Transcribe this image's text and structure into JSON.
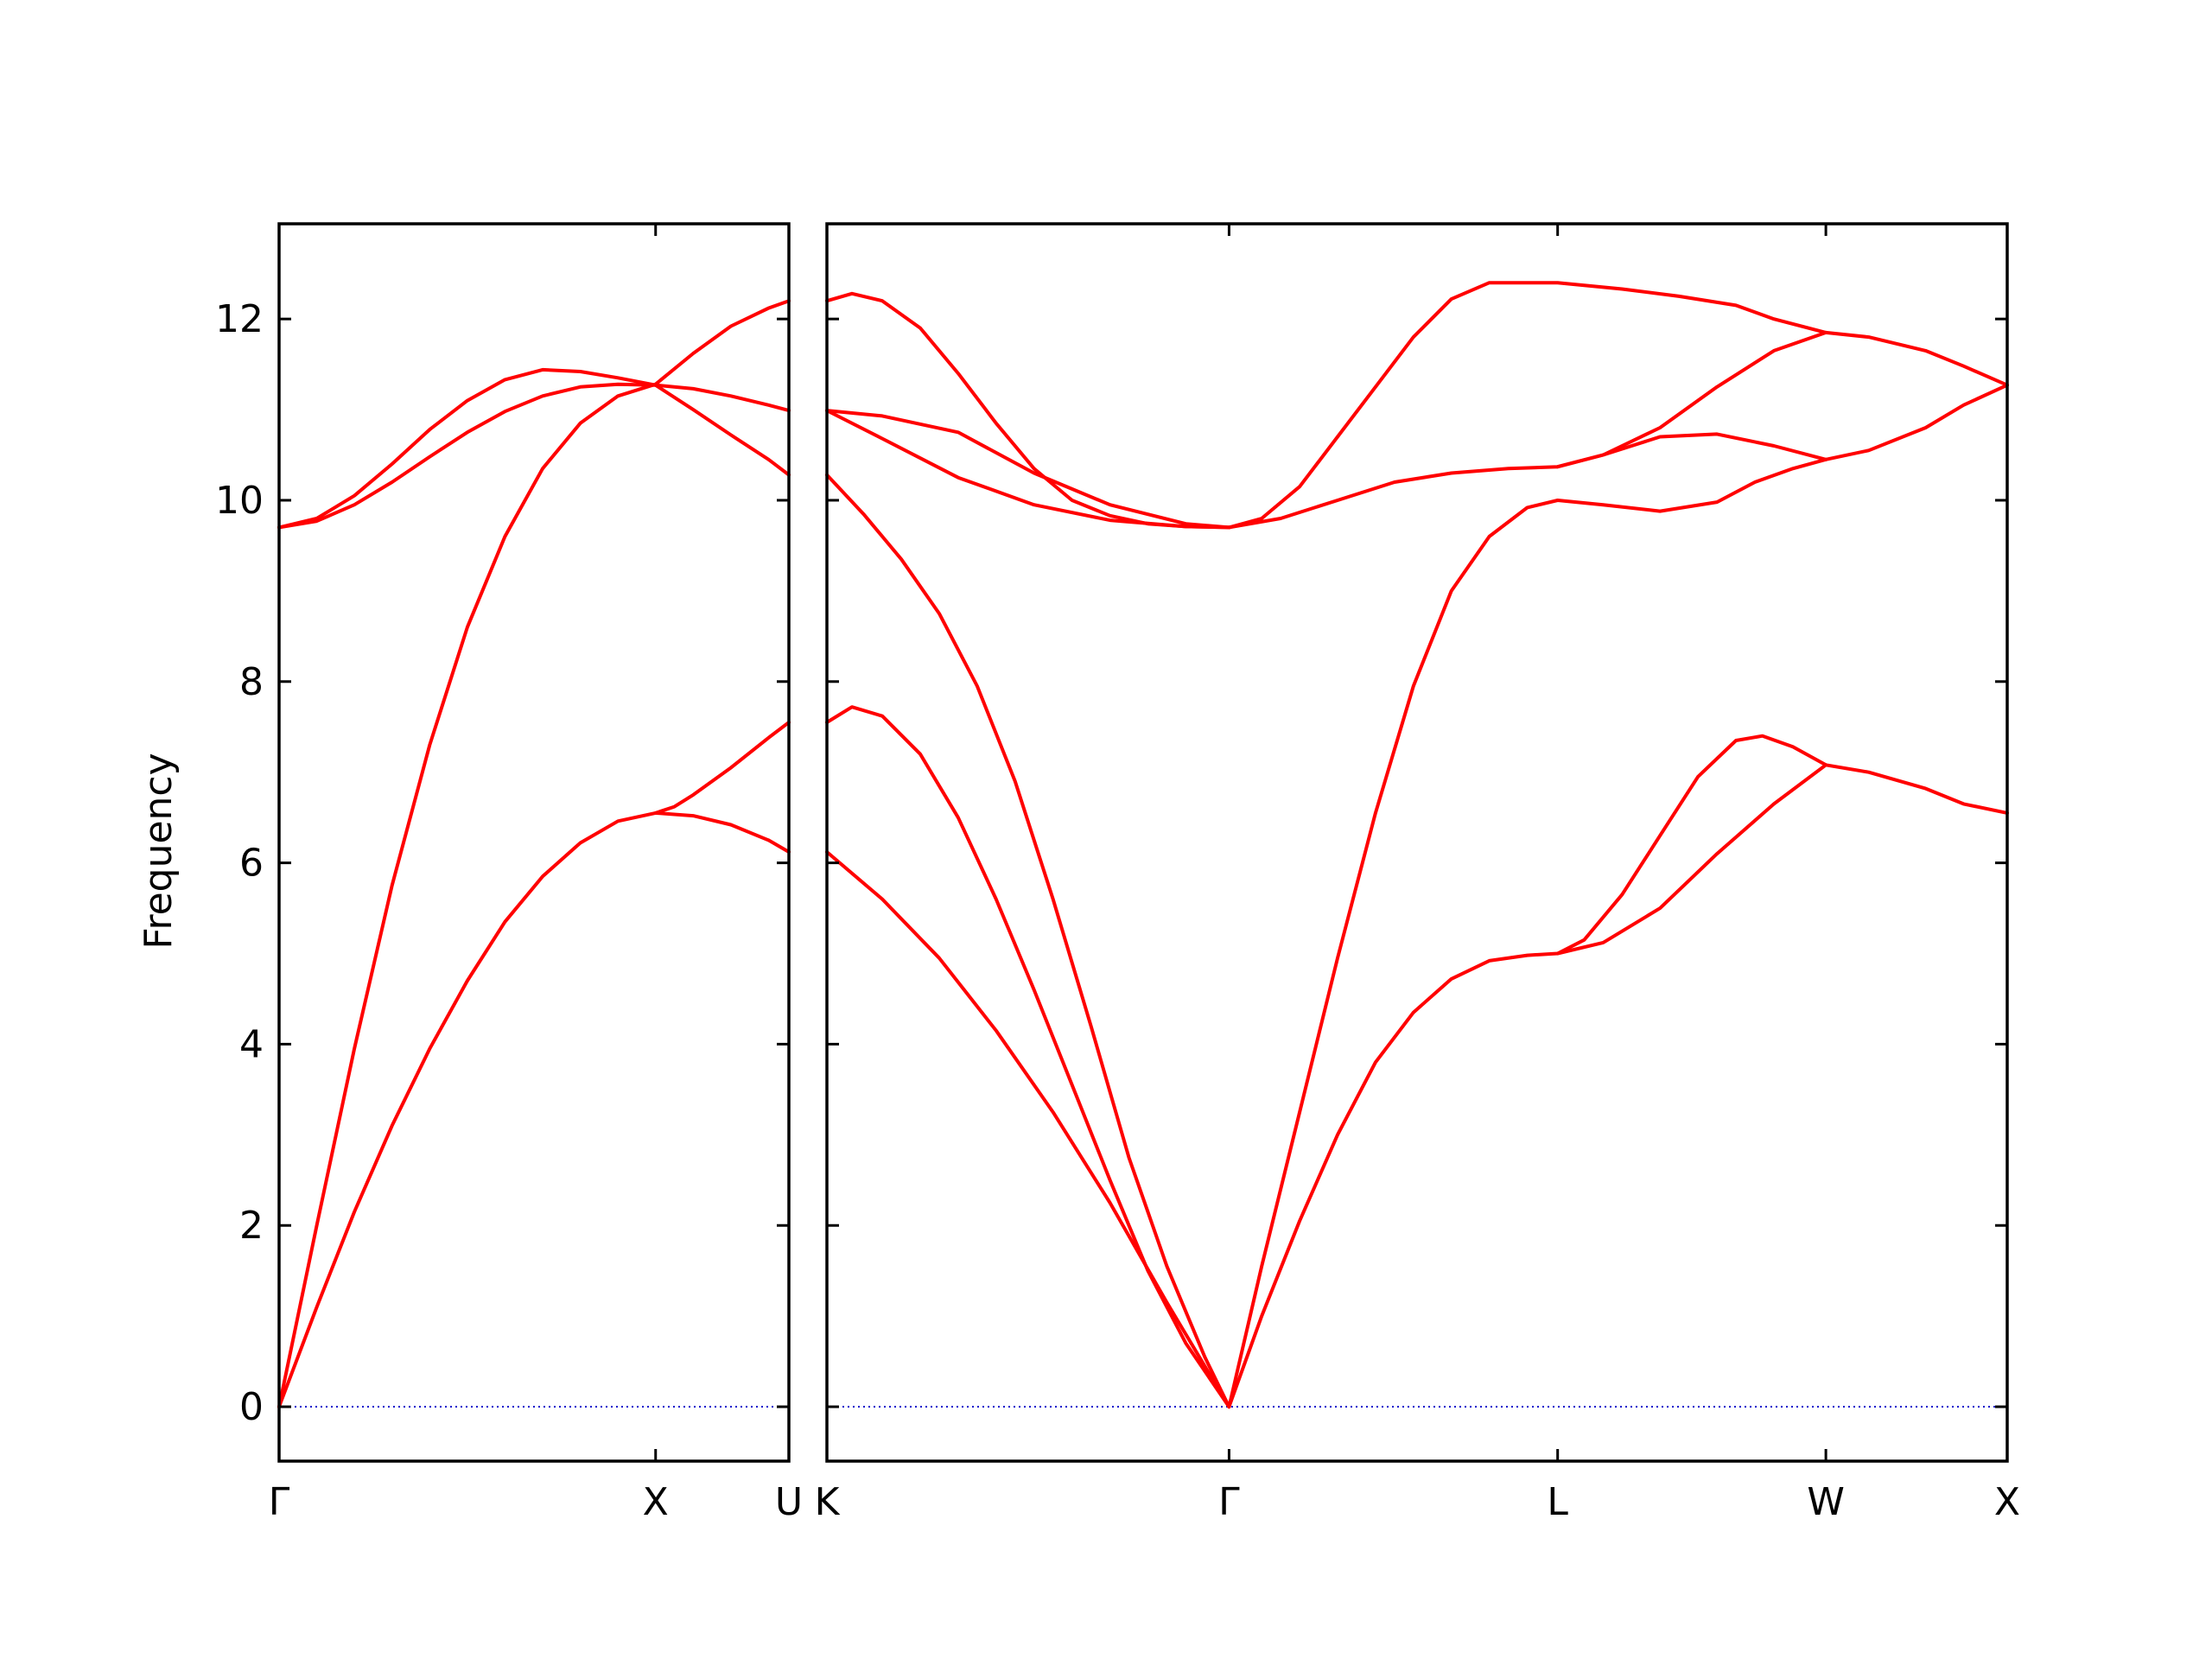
{
  "chart_data": {
    "type": "line",
    "ylabel": "Frequency",
    "ylim": [
      -0.6,
      13.05
    ],
    "yticks": [
      0,
      2,
      4,
      6,
      8,
      10,
      12
    ],
    "grid": false,
    "band_color": "#ff0000",
    "zero_line_color": "#0000cc",
    "panels": [
      {
        "xlim": [
          0,
          1.354
        ],
        "ticks": [
          {
            "x": 0,
            "label": "Γ"
          },
          {
            "x": 1.0,
            "label": "X"
          },
          {
            "x": 1.354,
            "label": "U"
          }
        ],
        "bands": [
          [
            [
              0,
              0
            ],
            [
              0.1,
              1.1
            ],
            [
              0.2,
              2.15
            ],
            [
              0.3,
              3.1
            ],
            [
              0.4,
              3.95
            ],
            [
              0.5,
              4.7
            ],
            [
              0.6,
              5.35
            ],
            [
              0.7,
              5.85
            ],
            [
              0.8,
              6.22
            ],
            [
              0.9,
              6.46
            ],
            [
              1.0,
              6.55
            ],
            [
              1.1,
              6.52
            ],
            [
              1.2,
              6.42
            ],
            [
              1.3,
              6.25
            ],
            [
              1.354,
              6.12
            ]
          ],
          [
            [
              0,
              0
            ],
            [
              0.1,
              2.0
            ],
            [
              0.2,
              3.95
            ],
            [
              0.3,
              5.75
            ],
            [
              0.4,
              7.3
            ],
            [
              0.5,
              8.6
            ],
            [
              0.6,
              9.6
            ],
            [
              0.7,
              10.35
            ],
            [
              0.8,
              10.85
            ],
            [
              0.9,
              11.15
            ],
            [
              1.0,
              11.28
            ],
            [
              1.1,
              11.62
            ],
            [
              1.2,
              11.92
            ],
            [
              1.3,
              12.12
            ],
            [
              1.354,
              12.2
            ]
          ],
          [
            [
              0,
              9.7
            ],
            [
              0.1,
              9.77
            ],
            [
              0.2,
              9.95
            ],
            [
              0.3,
              10.2
            ],
            [
              0.4,
              10.48
            ],
            [
              0.5,
              10.75
            ],
            [
              0.6,
              10.98
            ],
            [
              0.7,
              11.15
            ],
            [
              0.8,
              11.25
            ],
            [
              0.9,
              11.28
            ],
            [
              1.0,
              11.27
            ],
            [
              1.1,
              11.23
            ],
            [
              1.2,
              11.15
            ],
            [
              1.3,
              11.05
            ],
            [
              1.354,
              10.99
            ]
          ],
          [
            [
              0,
              9.7
            ],
            [
              0.1,
              9.8
            ],
            [
              0.2,
              10.05
            ],
            [
              0.3,
              10.4
            ],
            [
              0.4,
              10.78
            ],
            [
              0.5,
              11.1
            ],
            [
              0.6,
              11.33
            ],
            [
              0.7,
              11.44
            ],
            [
              0.8,
              11.42
            ],
            [
              0.9,
              11.35
            ],
            [
              1.0,
              11.27
            ],
            [
              1.1,
              11.0
            ],
            [
              1.2,
              10.72
            ],
            [
              1.3,
              10.45
            ],
            [
              1.354,
              10.28
            ]
          ],
          [
            [
              1.0,
              6.55
            ],
            [
              1.05,
              6.62
            ],
            [
              1.1,
              6.75
            ],
            [
              1.2,
              7.05
            ],
            [
              1.3,
              7.38
            ],
            [
              1.354,
              7.55
            ]
          ]
        ]
      },
      {
        "xlim": [
          1.354,
          4.465
        ],
        "ticks": [
          {
            "x": 1.354,
            "label": "K"
          },
          {
            "x": 2.414,
            "label": "Γ"
          },
          {
            "x": 3.28,
            "label": "L"
          },
          {
            "x": 3.987,
            "label": "W"
          },
          {
            "x": 4.465,
            "label": "X"
          }
        ],
        "bands": [
          [
            [
              1.354,
              6.12
            ],
            [
              1.5,
              5.6
            ],
            [
              1.65,
              4.95
            ],
            [
              1.8,
              4.15
            ],
            [
              1.95,
              3.25
            ],
            [
              2.1,
              2.25
            ],
            [
              2.25,
              1.15
            ],
            [
              2.414,
              0
            ]
          ],
          [
            [
              1.354,
              7.55
            ],
            [
              1.42,
              7.72
            ],
            [
              1.5,
              7.62
            ],
            [
              1.6,
              7.2
            ],
            [
              1.7,
              6.5
            ],
            [
              1.8,
              5.6
            ],
            [
              1.9,
              4.6
            ],
            [
              2.0,
              3.55
            ],
            [
              2.1,
              2.5
            ],
            [
              2.2,
              1.5
            ],
            [
              2.3,
              0.7
            ],
            [
              2.414,
              0
            ]
          ],
          [
            [
              1.354,
              10.28
            ],
            [
              1.45,
              9.85
            ],
            [
              1.55,
              9.35
            ],
            [
              1.65,
              8.75
            ],
            [
              1.75,
              7.95
            ],
            [
              1.85,
              6.9
            ],
            [
              1.95,
              5.6
            ],
            [
              2.05,
              4.2
            ],
            [
              2.15,
              2.75
            ],
            [
              2.25,
              1.55
            ],
            [
              2.35,
              0.55
            ],
            [
              2.414,
              0
            ]
          ],
          [
            [
              1.354,
              10.99
            ],
            [
              1.5,
              10.68
            ],
            [
              1.7,
              10.25
            ],
            [
              1.9,
              9.95
            ],
            [
              2.1,
              9.78
            ],
            [
              2.3,
              9.71
            ],
            [
              2.414,
              9.7
            ]
          ],
          [
            [
              1.354,
              10.99
            ],
            [
              1.5,
              10.93
            ],
            [
              1.7,
              10.75
            ],
            [
              1.9,
              10.3
            ],
            [
              2.1,
              9.95
            ],
            [
              2.3,
              9.74
            ],
            [
              2.414,
              9.7
            ]
          ],
          [
            [
              1.354,
              12.2
            ],
            [
              1.42,
              12.28
            ],
            [
              1.5,
              12.2
            ],
            [
              1.6,
              11.9
            ],
            [
              1.7,
              11.4
            ],
            [
              1.8,
              10.85
            ],
            [
              1.9,
              10.35
            ],
            [
              2.0,
              10.0
            ],
            [
              2.1,
              9.83
            ],
            [
              2.2,
              9.74
            ],
            [
              2.3,
              9.71
            ],
            [
              2.414,
              9.7
            ]
          ],
          [
            [
              2.414,
              0
            ],
            [
              2.5,
              1.55
            ],
            [
              2.6,
              3.25
            ],
            [
              2.7,
              4.95
            ],
            [
              2.8,
              6.55
            ],
            [
              2.9,
              7.95
            ],
            [
              3.0,
              9.0
            ],
            [
              3.1,
              9.6
            ],
            [
              3.2,
              9.92
            ],
            [
              3.28,
              10.0
            ],
            [
              3.4,
              9.95
            ],
            [
              3.55,
              9.88
            ],
            [
              3.7,
              9.98
            ],
            [
              3.8,
              10.2
            ],
            [
              3.9,
              10.35
            ],
            [
              3.987,
              10.45
            ]
          ],
          [
            [
              2.414,
              0
            ],
            [
              2.5,
              1.0
            ],
            [
              2.6,
              2.05
            ],
            [
              2.7,
              3.0
            ],
            [
              2.8,
              3.8
            ],
            [
              2.9,
              4.35
            ],
            [
              3.0,
              4.72
            ],
            [
              3.1,
              4.92
            ],
            [
              3.2,
              4.98
            ],
            [
              3.28,
              5.0
            ],
            [
              3.4,
              5.12
            ],
            [
              3.55,
              5.5
            ],
            [
              3.7,
              6.1
            ],
            [
              3.85,
              6.65
            ],
            [
              3.987,
              7.08
            ]
          ],
          [
            [
              2.414,
              9.7
            ],
            [
              2.55,
              9.8
            ],
            [
              2.7,
              10.0
            ],
            [
              2.85,
              10.2
            ],
            [
              3.0,
              10.3
            ],
            [
              3.15,
              10.35
            ],
            [
              3.28,
              10.37
            ],
            [
              3.4,
              10.5
            ],
            [
              3.55,
              10.7
            ],
            [
              3.7,
              10.73
            ],
            [
              3.85,
              10.6
            ],
            [
              3.987,
              10.45
            ]
          ],
          [
            [
              2.414,
              9.7
            ],
            [
              2.5,
              9.8
            ],
            [
              2.6,
              10.15
            ],
            [
              2.7,
              10.7
            ],
            [
              2.8,
              11.25
            ],
            [
              2.9,
              11.8
            ],
            [
              3.0,
              12.22
            ],
            [
              3.1,
              12.4
            ],
            [
              3.28,
              12.4
            ],
            [
              3.45,
              12.33
            ],
            [
              3.6,
              12.25
            ],
            [
              3.75,
              12.15
            ],
            [
              3.85,
              12.0
            ],
            [
              3.987,
              11.85
            ]
          ],
          [
            [
              3.28,
              5.0
            ],
            [
              3.35,
              5.15
            ],
            [
              3.45,
              5.65
            ],
            [
              3.55,
              6.3
            ],
            [
              3.65,
              6.95
            ],
            [
              3.75,
              7.35
            ],
            [
              3.82,
              7.4
            ],
            [
              3.9,
              7.28
            ],
            [
              3.987,
              7.08
            ]
          ],
          [
            [
              3.28,
              10.37
            ],
            [
              3.4,
              10.5
            ],
            [
              3.55,
              10.8
            ],
            [
              3.7,
              11.25
            ],
            [
              3.85,
              11.65
            ],
            [
              3.987,
              11.85
            ]
          ],
          [
            [
              3.987,
              7.08
            ],
            [
              4.1,
              7.0
            ],
            [
              4.25,
              6.82
            ],
            [
              4.35,
              6.65
            ],
            [
              4.465,
              6.55
            ]
          ],
          [
            [
              3.987,
              10.45
            ],
            [
              4.1,
              10.55
            ],
            [
              4.25,
              10.8
            ],
            [
              4.35,
              11.05
            ],
            [
              4.465,
              11.27
            ]
          ],
          [
            [
              3.987,
              11.85
            ],
            [
              4.1,
              11.8
            ],
            [
              4.25,
              11.65
            ],
            [
              4.35,
              11.48
            ],
            [
              4.465,
              11.27
            ]
          ]
        ]
      }
    ]
  }
}
